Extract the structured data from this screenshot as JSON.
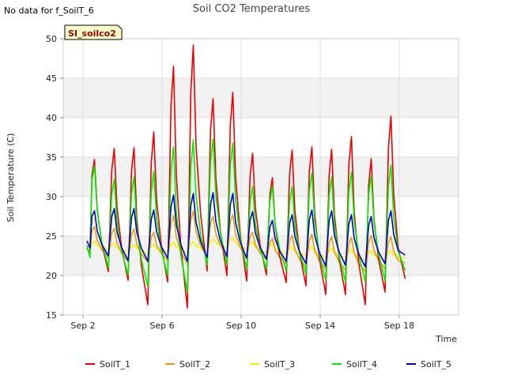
{
  "notice": "No data for f_SoilT_6",
  "chart_data": {
    "type": "line",
    "title": "Soil CO2 Temperatures",
    "xlabel": "Time",
    "ylabel": "Soil Temperature (C)",
    "badge": "SI_soilco2",
    "ylim": [
      15,
      50
    ],
    "yticks": [
      15,
      20,
      25,
      30,
      35,
      40,
      45,
      50
    ],
    "xlim": [
      1,
      21
    ],
    "xticks": [
      {
        "day": 2,
        "label": "Sep 2"
      },
      {
        "day": 6,
        "label": "Sep 6"
      },
      {
        "day": 10,
        "label": "Sep 10"
      },
      {
        "day": 14,
        "label": "Sep 14"
      },
      {
        "day": 18,
        "label": "Sep 18"
      }
    ],
    "shaded_bands": [
      [
        20,
        25
      ],
      [
        30,
        35
      ],
      [
        40,
        45
      ]
    ],
    "grid": true,
    "legend_position": "bottom",
    "series": [
      {
        "name": "SoilT_1",
        "color": "#ee0000",
        "daily_max": [
          34.7,
          36.1,
          36.2,
          38.2,
          46.5,
          49.2,
          42.4,
          43.2,
          35.5,
          32.4,
          35.9,
          36.3,
          36.0,
          37.6,
          34.8,
          40.2
        ],
        "daily_min": [
          22.7,
          20.5,
          19.4,
          16.3,
          19.2,
          15.9,
          20.6,
          20.0,
          19.3,
          20.1,
          19.1,
          18.7,
          17.6,
          17.6,
          16.3,
          17.9
        ],
        "start": 23.5,
        "end": 19.6
      },
      {
        "name": "SoilT_2",
        "color": "#e69f00",
        "daily_max": [
          26.2,
          26.0,
          25.9,
          25.5,
          27.6,
          28.2,
          27.5,
          27.7,
          25.5,
          24.7,
          25.1,
          25.2,
          24.9,
          24.8,
          25.1,
          24.9
        ],
        "daily_min": [
          22.8,
          22.3,
          21.8,
          21.7,
          21.9,
          21.5,
          22.3,
          22.6,
          22.2,
          22.0,
          21.5,
          21.1,
          20.8,
          20.7,
          20.5,
          20.9
        ],
        "start": 23.5,
        "end": 21.6
      },
      {
        "name": "SoilT_3",
        "color": "#ffee00",
        "daily_max": [
          24.3,
          24.0,
          23.9,
          23.9,
          24.2,
          24.3,
          24.6,
          24.8,
          24.2,
          24.0,
          23.6,
          23.6,
          23.4,
          23.3,
          23.1,
          23.1
        ],
        "daily_min": [
          23.2,
          23.3,
          23.0,
          22.9,
          22.9,
          22.9,
          23.1,
          23.6,
          23.4,
          22.9,
          22.8,
          22.6,
          22.3,
          22.2,
          22.0,
          22.0
        ],
        "start": 23.3,
        "end": 22.3
      },
      {
        "name": "SoilT_4",
        "color": "#00ee00",
        "daily_max": [
          33.9,
          32.2,
          32.5,
          33.2,
          36.3,
          37.2,
          37.3,
          36.8,
          31.3,
          31.3,
          31.3,
          33.0,
          32.5,
          33.1,
          32.7,
          34.0
        ],
        "daily_min": [
          21.9,
          21.0,
          20.1,
          18.6,
          20.0,
          17.9,
          21.3,
          21.4,
          20.8,
          20.8,
          20.6,
          20.2,
          19.4,
          19.2,
          19.2,
          19.4
        ],
        "start": 23.8,
        "end": 20.6
      },
      {
        "name": "SoilT_5",
        "color": "#0000cc",
        "daily_max": [
          28.2,
          28.5,
          28.5,
          28.3,
          30.2,
          30.4,
          30.5,
          30.4,
          28.1,
          27.0,
          27.7,
          28.3,
          28.2,
          27.7,
          27.5,
          28.2
        ],
        "daily_min": [
          23.2,
          22.5,
          21.9,
          21.8,
          22.2,
          21.8,
          22.3,
          22.4,
          22.2,
          22.1,
          21.8,
          21.5,
          21.2,
          21.3,
          21.1,
          21.5
        ],
        "start": 24.4,
        "end": 22.6
      }
    ]
  }
}
